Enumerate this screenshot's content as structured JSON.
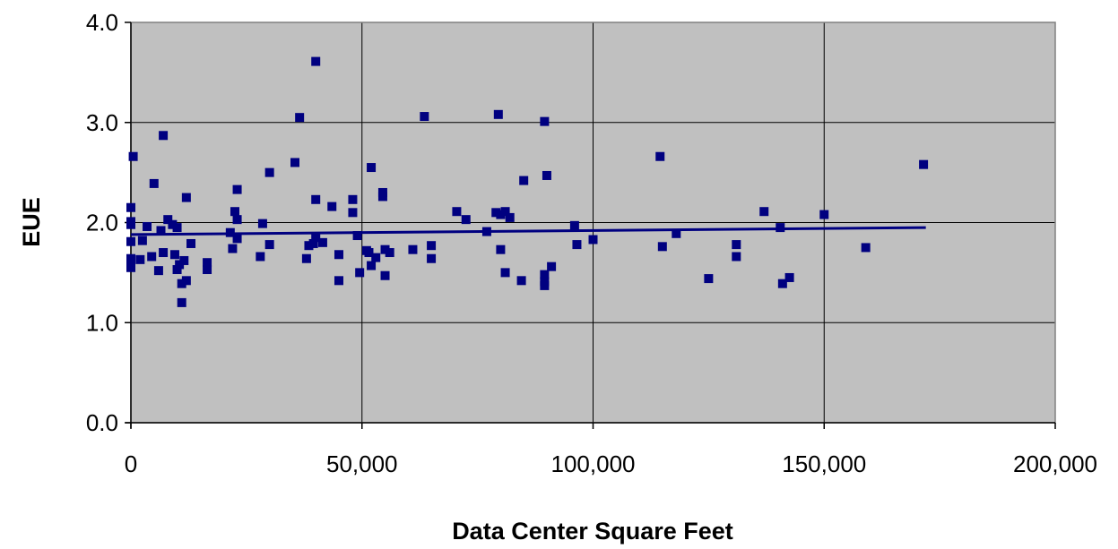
{
  "chart_data": {
    "type": "scatter",
    "title": "",
    "xlabel": "Data Center Square Feet",
    "ylabel": "EUE",
    "xlim": [
      0,
      200000
    ],
    "ylim": [
      0,
      4.0
    ],
    "x_ticks": [
      0,
      50000,
      100000,
      150000,
      200000
    ],
    "x_tick_labels": [
      "0",
      "50,000",
      "100,000",
      "150,000",
      "200,000"
    ],
    "y_ticks": [
      0,
      1,
      2,
      3,
      4
    ],
    "y_tick_labels": [
      "0.0",
      "1.0",
      "2.0",
      "3.0",
      "4.0"
    ],
    "grid": true,
    "plot_background": "#c0c0c0",
    "marker_color": "#000080",
    "marker": "square",
    "trendline": {
      "type": "linear",
      "x": [
        0,
        172000
      ],
      "y": [
        1.88,
        1.95
      ],
      "color": "#000080"
    },
    "points": [
      [
        0,
        2.15
      ],
      [
        0,
        2.01
      ],
      [
        0,
        1.98
      ],
      [
        0,
        1.81
      ],
      [
        0,
        1.64
      ],
      [
        0,
        1.58
      ],
      [
        0,
        1.55
      ],
      [
        500,
        2.66
      ],
      [
        2000,
        1.63
      ],
      [
        2500,
        1.82
      ],
      [
        3500,
        1.96
      ],
      [
        4500,
        1.66
      ],
      [
        5000,
        2.39
      ],
      [
        6000,
        1.52
      ],
      [
        6500,
        1.92
      ],
      [
        7000,
        2.87
      ],
      [
        7000,
        1.7
      ],
      [
        8000,
        2.03
      ],
      [
        9000,
        1.98
      ],
      [
        9500,
        1.68
      ],
      [
        10000,
        1.95
      ],
      [
        10000,
        1.53
      ],
      [
        10500,
        1.58
      ],
      [
        11000,
        1.39
      ],
      [
        11000,
        1.2
      ],
      [
        11500,
        1.62
      ],
      [
        12000,
        2.25
      ],
      [
        12000,
        1.42
      ],
      [
        13000,
        1.79
      ],
      [
        16500,
        1.6
      ],
      [
        16500,
        1.53
      ],
      [
        21500,
        1.9
      ],
      [
        22000,
        1.74
      ],
      [
        22500,
        2.11
      ],
      [
        23000,
        2.03
      ],
      [
        23000,
        2.33
      ],
      [
        23000,
        1.84
      ],
      [
        28000,
        1.66
      ],
      [
        28500,
        1.99
      ],
      [
        30000,
        2.5
      ],
      [
        30000,
        1.78
      ],
      [
        35500,
        2.6
      ],
      [
        36500,
        3.05
      ],
      [
        38000,
        1.64
      ],
      [
        38500,
        1.77
      ],
      [
        39500,
        1.79
      ],
      [
        40000,
        3.61
      ],
      [
        40000,
        2.23
      ],
      [
        40000,
        1.85
      ],
      [
        41500,
        1.8
      ],
      [
        43500,
        2.16
      ],
      [
        45000,
        1.68
      ],
      [
        45000,
        1.42
      ],
      [
        48000,
        2.23
      ],
      [
        48000,
        2.1
      ],
      [
        49000,
        1.87
      ],
      [
        49500,
        1.5
      ],
      [
        51000,
        1.72
      ],
      [
        51500,
        1.7
      ],
      [
        52000,
        2.55
      ],
      [
        52000,
        1.57
      ],
      [
        53000,
        1.65
      ],
      [
        54500,
        2.3
      ],
      [
        54500,
        2.26
      ],
      [
        55000,
        1.73
      ],
      [
        55000,
        1.47
      ],
      [
        56000,
        1.7
      ],
      [
        61000,
        1.73
      ],
      [
        63500,
        3.06
      ],
      [
        65000,
        1.77
      ],
      [
        65000,
        1.64
      ],
      [
        70500,
        2.11
      ],
      [
        72500,
        2.03
      ],
      [
        77000,
        1.91
      ],
      [
        79000,
        2.1
      ],
      [
        79500,
        3.08
      ],
      [
        80000,
        2.08
      ],
      [
        80000,
        1.73
      ],
      [
        81000,
        2.11
      ],
      [
        81000,
        1.5
      ],
      [
        82000,
        2.05
      ],
      [
        84500,
        1.42
      ],
      [
        85000,
        2.42
      ],
      [
        89500,
        3.01
      ],
      [
        89500,
        1.48
      ],
      [
        89500,
        1.41
      ],
      [
        89500,
        1.37
      ],
      [
        90000,
        2.47
      ],
      [
        91000,
        1.56
      ],
      [
        96000,
        1.97
      ],
      [
        96500,
        1.78
      ],
      [
        100000,
        1.83
      ],
      [
        114500,
        2.66
      ],
      [
        115000,
        1.76
      ],
      [
        118000,
        1.89
      ],
      [
        125000,
        1.44
      ],
      [
        131000,
        1.78
      ],
      [
        131000,
        1.66
      ],
      [
        137000,
        2.11
      ],
      [
        140500,
        1.95
      ],
      [
        141000,
        1.39
      ],
      [
        142500,
        1.45
      ],
      [
        150000,
        2.08
      ],
      [
        159000,
        1.75
      ],
      [
        171500,
        2.58
      ]
    ]
  }
}
